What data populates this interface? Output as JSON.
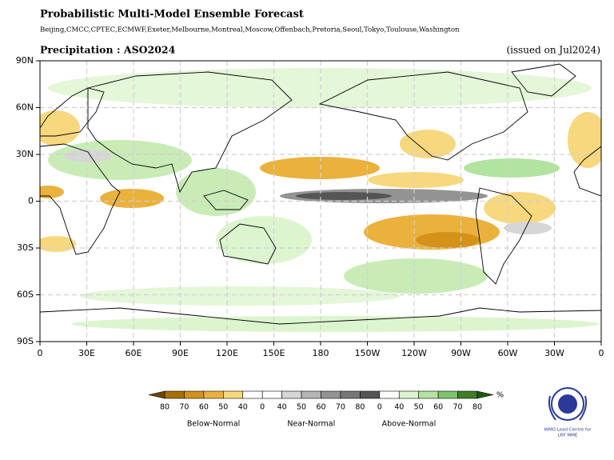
{
  "header": {
    "title": "Probabilistic Multi-Model Ensemble Forecast",
    "models": "Beijing,CMCC,CPTEC,ECMWF,Exeter,Melbourne,Montreal,Moscow,Offenbach,Pretoria,Seoul,Tokyo,Toulouse,Washington",
    "subtitle": "Precipitation : ASO2024",
    "issued": "(issued on Jul2024)"
  },
  "map": {
    "lat_labels": [
      "90N",
      "60N",
      "30N",
      "0",
      "30S",
      "60S",
      "90S"
    ],
    "lon_labels": [
      "0",
      "30E",
      "60E",
      "90E",
      "120E",
      "150E",
      "180",
      "150W",
      "120W",
      "90W",
      "60W",
      "30W",
      "0"
    ]
  },
  "legend": {
    "unit": "%",
    "labels": [
      "80",
      "70",
      "60",
      "50",
      "40",
      "0",
      "40",
      "50",
      "60",
      "70",
      "80",
      "0",
      "40",
      "50",
      "60",
      "70",
      "80"
    ],
    "colors": [
      "#a8700a",
      "#d4921a",
      "#eab13c",
      "#f8d87e",
      "#ffffff",
      "#ffffff",
      "#d6d6d6",
      "#b4b4b4",
      "#939393",
      "#777777",
      "#555555",
      "#ffffff",
      "#dcf5cf",
      "#b2e3a0",
      "#7cc46a",
      "#3f7e25"
    ],
    "arrow_colors": [
      "#6d4700",
      "#1e5a0e"
    ],
    "groups": [
      "Below-Normal",
      "Near-Normal",
      "Above-Normal"
    ]
  },
  "logo": {
    "lines": [
      "WMO Lead Centre for",
      "LRF MME"
    ]
  }
}
